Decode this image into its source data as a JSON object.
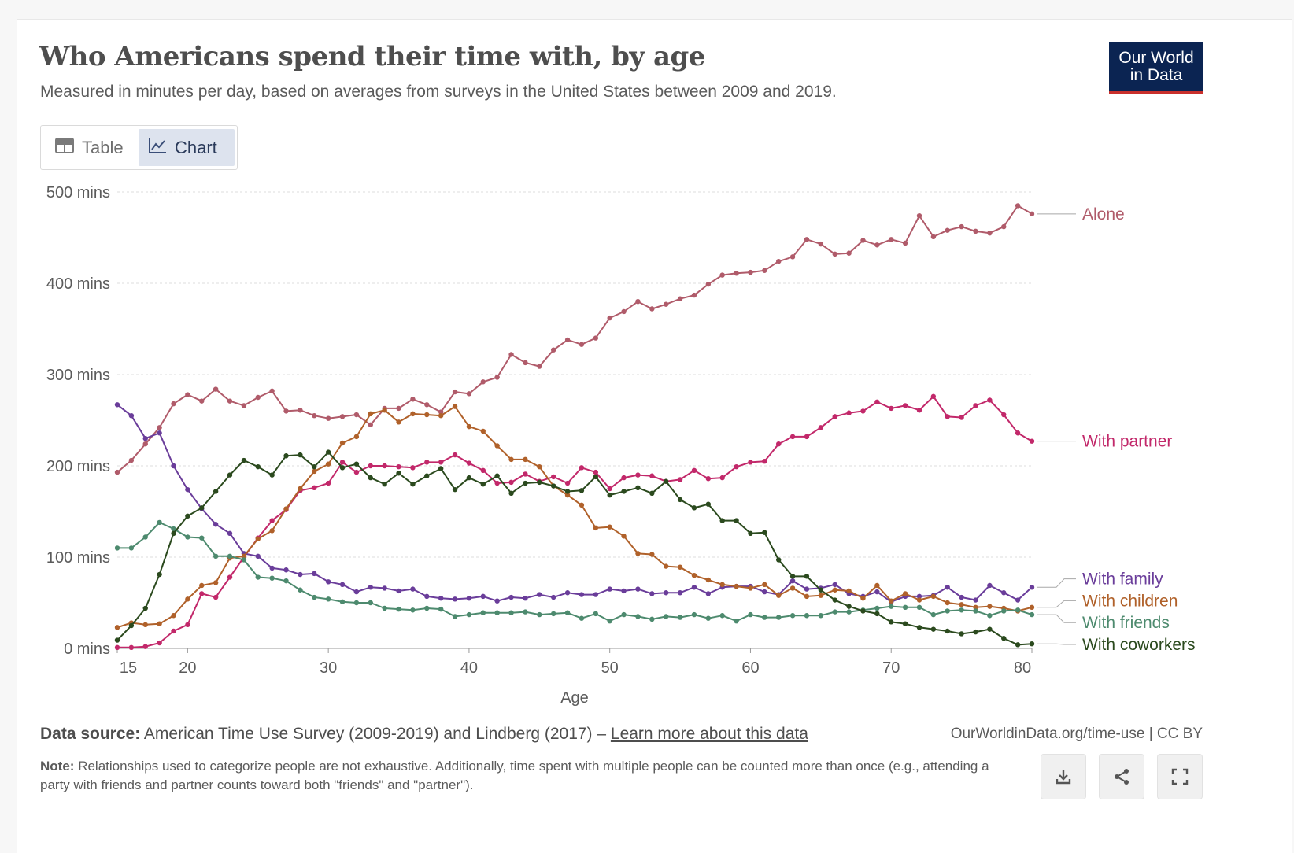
{
  "header": {
    "title": "Who Americans spend their time with, by age",
    "subtitle": "Measured in minutes per day, based on averages from surveys in the United States between 2009 and 2019.",
    "logo_line1": "Our World",
    "logo_line2": "in Data"
  },
  "tabs": [
    {
      "label": "Table",
      "icon": "table-icon",
      "active": false
    },
    {
      "label": "Chart",
      "icon": "line-chart-icon",
      "active": true
    }
  ],
  "footer": {
    "source_label": "Data source:",
    "source_text": "American Time Use Survey (2009-2019) and Lindberg (2017) – ",
    "source_link": "Learn more about this data",
    "credit": "OurWorldinData.org/time-use | CC BY",
    "note_label": "Note:",
    "note_text": "Relationships used to categorize people are not exhaustive. Additionally, time spent with multiple people can be counted more than once (e.g., attending a party with friends and partner counts toward both \"friends\" and \"partner\")."
  },
  "buttons": [
    {
      "name": "download-button",
      "icon": "download-icon"
    },
    {
      "name": "share-button",
      "icon": "share-icon"
    },
    {
      "name": "fullscreen-button",
      "icon": "fullscreen-icon"
    }
  ],
  "chart_data": {
    "type": "line",
    "xlabel": "Age",
    "xlim": [
      15,
      80
    ],
    "ylim": [
      0,
      500
    ],
    "x_ticks": [
      15,
      20,
      30,
      40,
      50,
      60,
      70,
      80
    ],
    "y_ticks": [
      {
        "value": 0,
        "label": "0 mins"
      },
      {
        "value": 100,
        "label": "100 mins"
      },
      {
        "value": 200,
        "label": "200 mins"
      },
      {
        "value": 300,
        "label": "300 mins"
      },
      {
        "value": 400,
        "label": "400 mins"
      },
      {
        "value": 500,
        "label": "500 mins"
      }
    ],
    "grid": "horizontal dashed",
    "legend": "right, labels at line ends",
    "x": [
      15,
      16,
      17,
      18,
      19,
      20,
      21,
      22,
      23,
      24,
      25,
      26,
      27,
      28,
      29,
      30,
      31,
      32,
      33,
      34,
      35,
      36,
      37,
      38,
      39,
      40,
      41,
      42,
      43,
      44,
      45,
      46,
      47,
      48,
      49,
      50,
      51,
      52,
      53,
      54,
      55,
      56,
      57,
      58,
      59,
      60,
      61,
      62,
      63,
      64,
      65,
      66,
      67,
      68,
      69,
      70,
      71,
      72,
      73,
      74,
      75,
      76,
      77,
      78,
      79,
      80
    ],
    "series": [
      {
        "name": "Alone",
        "color": "#b05b6a",
        "values": [
          193,
          206,
          224,
          242,
          268,
          278,
          271,
          284,
          271,
          266,
          275,
          282,
          260,
          261,
          255,
          252,
          254,
          256,
          245,
          263,
          263,
          273,
          267,
          259,
          281,
          279,
          292,
          297,
          322,
          313,
          309,
          327,
          338,
          333,
          340,
          362,
          369,
          380,
          372,
          377,
          383,
          387,
          399,
          409,
          411,
          412,
          414,
          424,
          429,
          448,
          443,
          432,
          433,
          447,
          442,
          448,
          444,
          474,
          451,
          458,
          462,
          457,
          455,
          462,
          485,
          476
        ]
      },
      {
        "name": "With partner",
        "color": "#c2286a",
        "values": [
          1,
          1,
          2,
          6,
          19,
          26,
          60,
          56,
          78,
          100,
          121,
          140,
          152,
          173,
          176,
          181,
          204,
          193,
          200,
          200,
          199,
          198,
          204,
          204,
          212,
          203,
          195,
          181,
          182,
          191,
          183,
          188,
          181,
          198,
          193,
          175,
          187,
          190,
          189,
          183,
          185,
          195,
          186,
          187,
          199,
          204,
          205,
          224,
          232,
          232,
          242,
          254,
          258,
          260,
          270,
          263,
          266,
          261,
          276,
          254,
          253,
          266,
          272,
          256,
          236,
          227
        ]
      },
      {
        "name": "With family",
        "color": "#6a3d9a",
        "values": [
          267,
          255,
          230,
          236,
          200,
          174,
          153,
          136,
          126,
          104,
          101,
          88,
          86,
          81,
          82,
          73,
          70,
          62,
          67,
          66,
          63,
          65,
          57,
          55,
          54,
          55,
          57,
          52,
          56,
          55,
          59,
          56,
          61,
          59,
          59,
          65,
          63,
          65,
          60,
          61,
          61,
          67,
          60,
          67,
          68,
          68,
          62,
          59,
          74,
          65,
          66,
          70,
          60,
          57,
          62,
          51,
          57,
          57,
          58,
          67,
          56,
          53,
          69,
          61,
          53,
          67
        ]
      },
      {
        "name": "With children",
        "color": "#b0612a",
        "values": [
          23,
          28,
          26,
          27,
          36,
          54,
          69,
          72,
          99,
          101,
          120,
          129,
          153,
          175,
          194,
          202,
          225,
          232,
          257,
          261,
          248,
          257,
          256,
          255,
          265,
          243,
          238,
          222,
          207,
          207,
          199,
          178,
          168,
          157,
          132,
          133,
          123,
          104,
          103,
          90,
          89,
          80,
          75,
          70,
          68,
          66,
          70,
          58,
          66,
          57,
          58,
          64,
          63,
          55,
          69,
          52,
          60,
          53,
          57,
          50,
          48,
          45,
          46,
          44,
          41,
          45
        ]
      },
      {
        "name": "With friends",
        "color": "#4d8a6e",
        "values": [
          110,
          110,
          122,
          138,
          131,
          122,
          121,
          101,
          101,
          97,
          78,
          77,
          74,
          64,
          56,
          54,
          51,
          50,
          50,
          44,
          43,
          42,
          44,
          43,
          35,
          37,
          39,
          39,
          39,
          40,
          37,
          38,
          39,
          33,
          38,
          30,
          37,
          35,
          32,
          35,
          34,
          37,
          33,
          36,
          30,
          37,
          34,
          34,
          36,
          36,
          36,
          40,
          40,
          42,
          44,
          46,
          45,
          45,
          37,
          41,
          42,
          41,
          36,
          41,
          42,
          37
        ]
      },
      {
        "name": "With coworkers",
        "color": "#2b4a1e",
        "values": [
          9,
          25,
          44,
          81,
          126,
          145,
          154,
          172,
          190,
          206,
          199,
          190,
          211,
          212,
          199,
          215,
          198,
          202,
          187,
          180,
          192,
          180,
          189,
          197,
          174,
          187,
          180,
          189,
          170,
          181,
          182,
          178,
          172,
          173,
          188,
          168,
          172,
          176,
          170,
          183,
          163,
          154,
          158,
          140,
          140,
          126,
          127,
          97,
          79,
          79,
          64,
          53,
          46,
          41,
          38,
          29,
          27,
          23,
          21,
          19,
          16,
          18,
          21,
          11,
          4,
          5
        ]
      }
    ]
  }
}
